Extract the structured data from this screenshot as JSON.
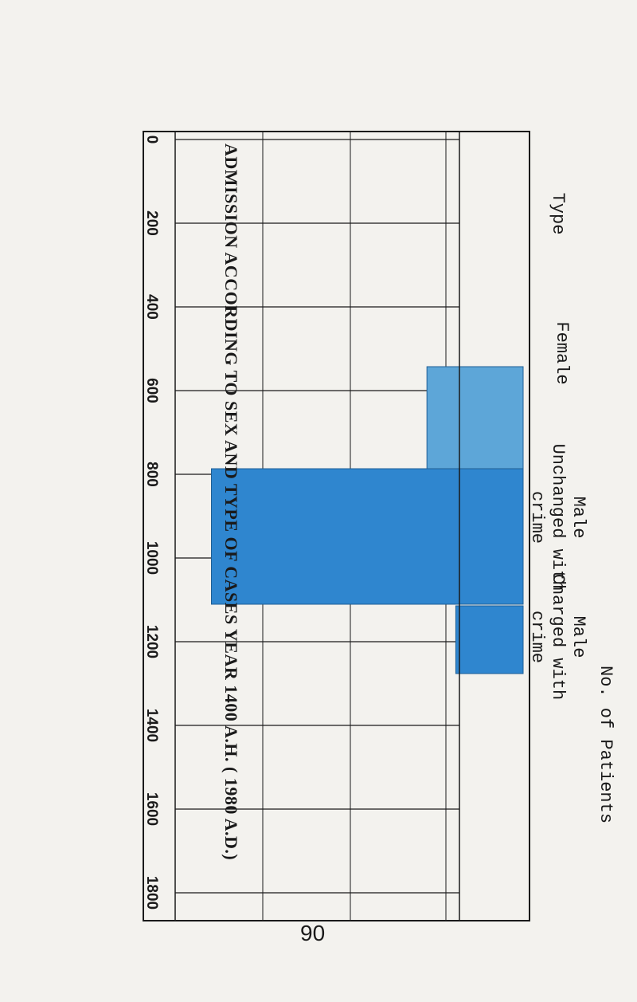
{
  "chart_data": {
    "type": "bar",
    "title": "ADMISSION ACCORDING TO SEX AND TYPE OF CASES YEAR 1400 A.H. ( 1980 A.D.)",
    "ylabel": "No. of Patients",
    "xlabel": "Type",
    "categories": [
      "Female",
      "Male Unchanged with crime",
      "Male Charged with crime"
    ],
    "values": [
      500,
      1620,
      350
    ],
    "ylim": [
      0,
      1800
    ],
    "yticks": [
      0,
      200,
      400,
      600,
      800,
      1000,
      1200,
      1400,
      1600,
      1800
    ],
    "grid": true,
    "colors": {
      "bar_light": "#5da6d8",
      "bar_dark": "#2f86cf",
      "axis": "#1a1a1a"
    }
  },
  "header_text": "Type",
  "cat_labels": [
    [
      "Female"
    ],
    [
      "Male",
      "Unchanged with",
      "crime"
    ],
    [
      "Male",
      "Charged with",
      "crime"
    ]
  ],
  "page_number": "90"
}
